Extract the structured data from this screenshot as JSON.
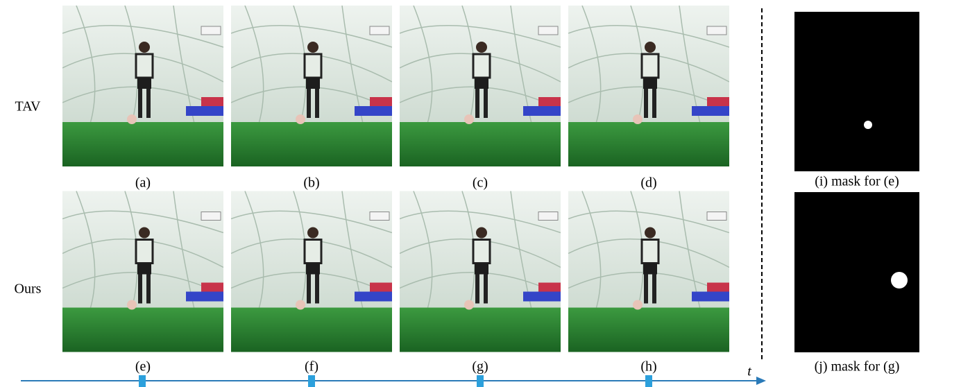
{
  "row_labels": [
    "TAV",
    "Ours"
  ],
  "frame_captions": [
    "(a)",
    "(b)",
    "(c)",
    "(d)",
    "(e)",
    "(f)",
    "(g)",
    "(h)"
  ],
  "mask_captions": [
    "(i) mask for (e)",
    "(j) mask for (g)"
  ],
  "timeline_label": "t"
}
